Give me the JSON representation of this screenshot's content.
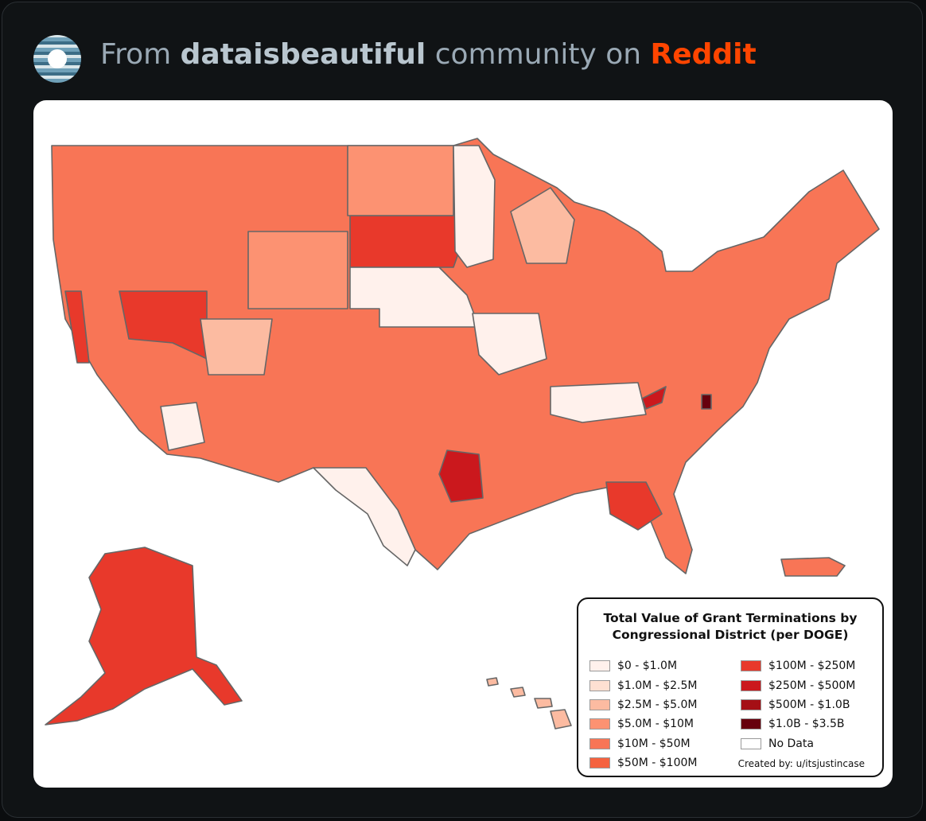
{
  "header": {
    "prefix": "From",
    "community": "dataisbeautiful",
    "middle": "community on",
    "site": "Reddit"
  },
  "legend": {
    "title": "Total Value of Grant Terminations by Congressional District (per DOGE)",
    "items": [
      {
        "label": "$0 - $1.0M",
        "color": "#fff1ec"
      },
      {
        "label": "$1.0M - $2.5M",
        "color": "#fee0d2"
      },
      {
        "label": "$2.5M - $5.0M",
        "color": "#fcbba1"
      },
      {
        "label": "$5.0M - $10M",
        "color": "#fc9272"
      },
      {
        "label": "$10M - $50M",
        "color": "#f87556"
      },
      {
        "label": "$50M - $100M",
        "color": "#f5623f"
      },
      {
        "label": "$100M - $250M",
        "color": "#e8392b"
      },
      {
        "label": "$250M - $500M",
        "color": "#cb181d"
      },
      {
        "label": "$500M - $1.0B",
        "color": "#a50f15"
      },
      {
        "label": "$1.0B - $3.5B",
        "color": "#67000d"
      },
      {
        "label": "No Data",
        "color": "#ffffff"
      }
    ],
    "credit": "Created by: u/itsjustincase"
  }
}
